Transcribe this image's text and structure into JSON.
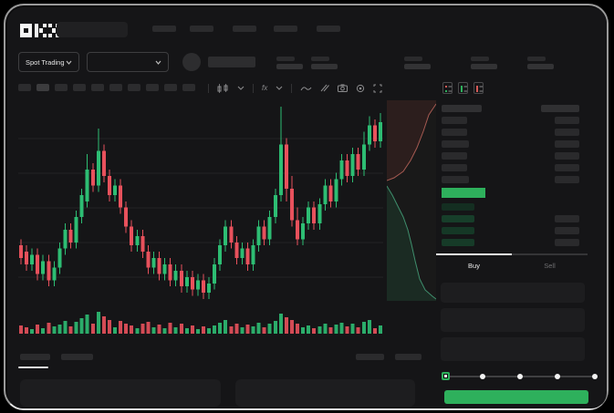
{
  "brand": {
    "name": "OKX"
  },
  "market_bar": {
    "selector_label": "Spot Trading"
  },
  "trade_panel": {
    "buy_tab": "Buy",
    "sell_tab": "Sell",
    "active_tab": "Buy",
    "slider": {
      "stops_percent": [
        0,
        25,
        50,
        75,
        100
      ],
      "value_percent": 0
    }
  },
  "colors": {
    "up": "#2dbd73",
    "down": "#e8515c",
    "accent_green": "#2eb05c",
    "depth_ask_line": "#a65a52",
    "depth_ask_fill": "rgba(150,62,56,0.16)",
    "depth_bid_line": "#3f8f6d",
    "depth_bid_fill": "rgba(46,140,95,0.16)",
    "grid": "#222224"
  },
  "order_book": {
    "asks": [
      {
        "price_w": 28,
        "amount_w": 27
      },
      {
        "price_w": 28,
        "amount_w": 27
      },
      {
        "price_w": 30,
        "amount_w": 27
      },
      {
        "price_w": 28,
        "amount_w": 27
      },
      {
        "price_w": 28,
        "amount_w": 27
      },
      {
        "price_w": 30,
        "amount_w": 27
      }
    ],
    "last_price": {
      "price_w": 48,
      "amount_w": 27,
      "direction": "up"
    },
    "bids": [
      {
        "price_w": 36,
        "amount_w": 0,
        "tint": "#142e21"
      },
      {
        "price_w": 36,
        "amount_w": 27,
        "tint": "#173e2a"
      },
      {
        "price_w": 36,
        "amount_w": 27,
        "tint": "#153826"
      },
      {
        "price_w": 36,
        "amount_w": 27,
        "tint": "#163b28"
      }
    ]
  },
  "chart_data": {
    "type": "candlestick",
    "ylim": [
      25,
      90
    ],
    "grid": true,
    "candles": [
      [
        44,
        40,
        38,
        46
      ],
      [
        42,
        38,
        36,
        44
      ],
      [
        38,
        41,
        36,
        43
      ],
      [
        41,
        35,
        33,
        43
      ],
      [
        35,
        39,
        33,
        41
      ],
      [
        39,
        33,
        31,
        41
      ],
      [
        33,
        37,
        31,
        39
      ],
      [
        37,
        43,
        35,
        45
      ],
      [
        43,
        49,
        41,
        51
      ],
      [
        49,
        45,
        43,
        51
      ],
      [
        45,
        53,
        43,
        55
      ],
      [
        53,
        60,
        51,
        62
      ],
      [
        58,
        68,
        56,
        73
      ],
      [
        68,
        63,
        61,
        70
      ],
      [
        63,
        74,
        61,
        81
      ],
      [
        74,
        66,
        64,
        76
      ],
      [
        66,
        60,
        58,
        68
      ],
      [
        60,
        63,
        58,
        65
      ],
      [
        63,
        56,
        54,
        65
      ],
      [
        56,
        50,
        48,
        58
      ],
      [
        50,
        44,
        42,
        52
      ],
      [
        44,
        47,
        42,
        49
      ],
      [
        47,
        42,
        40,
        49
      ],
      [
        42,
        37,
        35,
        44
      ],
      [
        37,
        40,
        35,
        42
      ],
      [
        40,
        35,
        33,
        42
      ],
      [
        35,
        38,
        33,
        40
      ],
      [
        38,
        33,
        31,
        40
      ],
      [
        33,
        36,
        31,
        38
      ],
      [
        36,
        31,
        29,
        38
      ],
      [
        31,
        34,
        29,
        36
      ],
      [
        34,
        30,
        28,
        36
      ],
      [
        30,
        33,
        28,
        35
      ],
      [
        33,
        29,
        27,
        35
      ],
      [
        29,
        32,
        27,
        34
      ],
      [
        32,
        38,
        30,
        40
      ],
      [
        38,
        44,
        36,
        46
      ],
      [
        44,
        50,
        42,
        52
      ],
      [
        50,
        45,
        43,
        52
      ],
      [
        45,
        40,
        38,
        47
      ],
      [
        40,
        43,
        38,
        45
      ],
      [
        43,
        38,
        36,
        45
      ],
      [
        38,
        44,
        36,
        46
      ],
      [
        44,
        50,
        42,
        52
      ],
      [
        50,
        46,
        44,
        52
      ],
      [
        46,
        53,
        44,
        55
      ],
      [
        53,
        60,
        51,
        62
      ],
      [
        60,
        76,
        58,
        88
      ],
      [
        76,
        62,
        58,
        78
      ],
      [
        62,
        52,
        50,
        66
      ],
      [
        52,
        46,
        44,
        56
      ],
      [
        46,
        51,
        44,
        53
      ],
      [
        51,
        56,
        49,
        58
      ],
      [
        56,
        51,
        49,
        58
      ],
      [
        51,
        57,
        49,
        59
      ],
      [
        57,
        63,
        55,
        65
      ],
      [
        63,
        58,
        56,
        65
      ],
      [
        58,
        65,
        56,
        67
      ],
      [
        65,
        71,
        63,
        73
      ],
      [
        71,
        66,
        64,
        73
      ],
      [
        66,
        73,
        64,
        75
      ],
      [
        73,
        68,
        66,
        75
      ],
      [
        68,
        76,
        66,
        80
      ],
      [
        76,
        82,
        74,
        85
      ],
      [
        82,
        77,
        75,
        84
      ],
      [
        77,
        83,
        75,
        86
      ]
    ],
    "volumes": [
      9,
      7,
      5,
      10,
      6,
      12,
      8,
      10,
      14,
      8,
      13,
      17,
      21,
      11,
      24,
      19,
      15,
      7,
      14,
      11,
      9,
      6,
      11,
      13,
      7,
      10,
      6,
      12,
      7,
      11,
      6,
      9,
      5,
      8,
      6,
      9,
      12,
      15,
      8,
      11,
      7,
      10,
      8,
      12,
      7,
      11,
      14,
      22,
      18,
      15,
      11,
      7,
      9,
      6,
      8,
      11,
      7,
      10,
      12,
      8,
      11,
      7,
      13,
      15,
      6,
      9
    ],
    "depth": {
      "asks_line": [
        [
          54,
          4
        ],
        [
          46,
          16
        ],
        [
          40,
          34
        ],
        [
          33,
          52
        ],
        [
          26,
          66
        ],
        [
          18,
          78
        ],
        [
          8,
          85
        ],
        [
          0,
          88
        ]
      ],
      "bids_line": [
        [
          0,
          94
        ],
        [
          6,
          104
        ],
        [
          12,
          116
        ],
        [
          18,
          128
        ],
        [
          23,
          142
        ],
        [
          27,
          158
        ],
        [
          31,
          176
        ],
        [
          36,
          196
        ],
        [
          42,
          208
        ],
        [
          50,
          215
        ],
        [
          54,
          218
        ]
      ]
    }
  }
}
